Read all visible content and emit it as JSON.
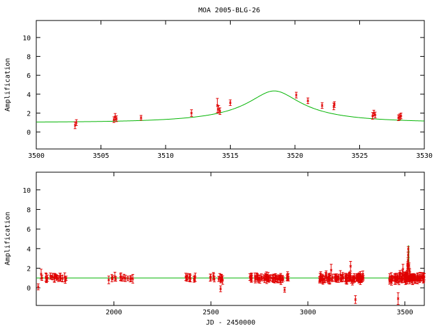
{
  "title": "MOA 2005-BLG-26",
  "colors": {
    "model": "#00b400",
    "data": "#e00000",
    "axis": "#000000",
    "background": "#ffffff"
  },
  "chart_data": [
    {
      "type": "scatter",
      "title": "MOA 2005-BLG-26",
      "xlabel": "",
      "ylabel": "Amplification",
      "xlim": [
        3500,
        3530
      ],
      "ylim": [
        -1.8,
        11.8
      ],
      "x_ticks": [
        3500,
        3505,
        3510,
        3515,
        3520,
        3525,
        3530
      ],
      "y_ticks": [
        0,
        2,
        4,
        6,
        8,
        10
      ],
      "grid": false,
      "series": [
        {
          "kind": "data",
          "points": [
            {
              "x": 3503.0,
              "y": 0.7,
              "err": 0.35
            },
            {
              "x": 3503.1,
              "y": 1.0,
              "err": 0.3
            },
            {
              "x": 3506.0,
              "y": 1.3,
              "err": 0.3
            },
            {
              "x": 3506.1,
              "y": 1.6,
              "err": 0.35
            },
            {
              "x": 3506.2,
              "y": 1.4,
              "err": 0.3
            },
            {
              "x": 3508.1,
              "y": 1.5,
              "err": 0.25
            },
            {
              "x": 3512.0,
              "y": 2.0,
              "err": 0.35
            },
            {
              "x": 3514.0,
              "y": 2.8,
              "err": 0.75
            },
            {
              "x": 3514.1,
              "y": 2.4,
              "err": 0.4
            },
            {
              "x": 3514.2,
              "y": 2.2,
              "err": 0.35
            },
            {
              "x": 3515.0,
              "y": 3.1,
              "err": 0.3
            },
            {
              "x": 3520.1,
              "y": 3.9,
              "err": 0.3
            },
            {
              "x": 3521.0,
              "y": 3.3,
              "err": 0.3
            },
            {
              "x": 3522.1,
              "y": 2.8,
              "err": 0.3
            },
            {
              "x": 3523.0,
              "y": 2.7,
              "err": 0.35
            },
            {
              "x": 3523.05,
              "y": 2.9,
              "err": 0.3
            },
            {
              "x": 3526.0,
              "y": 1.7,
              "err": 0.35
            },
            {
              "x": 3526.1,
              "y": 2.0,
              "err": 0.3
            },
            {
              "x": 3526.2,
              "y": 1.8,
              "err": 0.3
            },
            {
              "x": 3528.0,
              "y": 1.5,
              "err": 0.3
            },
            {
              "x": 3528.1,
              "y": 1.6,
              "err": 0.3
            },
            {
              "x": 3528.2,
              "y": 1.7,
              "err": 0.3
            }
          ]
        },
        {
          "kind": "model",
          "t0": 3518.4,
          "u0": 0.235,
          "tE": 8.5
        }
      ]
    },
    {
      "type": "scatter",
      "title": "",
      "xlabel": "JD - 2450000",
      "ylabel": "Amplification",
      "xlim": [
        1600,
        3600
      ],
      "ylim": [
        -1.8,
        11.8
      ],
      "x_ticks": [
        2000,
        2500,
        3000,
        3500
      ],
      "y_ticks": [
        0,
        2,
        4,
        6,
        8,
        10
      ],
      "grid": false,
      "series": [
        {
          "kind": "data",
          "clusters": [
            {
              "start": 1610,
              "end": 1780,
              "n": 22,
              "sd": 0.25
            },
            {
              "start": 1960,
              "end": 2100,
              "n": 14,
              "sd": 0.15
            },
            {
              "start": 2360,
              "end": 2420,
              "n": 10,
              "sd": 0.15
            },
            {
              "start": 2490,
              "end": 2570,
              "n": 12,
              "sd": 0.2
            },
            {
              "start": 2700,
              "end": 2900,
              "n": 60,
              "sd": 0.2
            },
            {
              "start": 3060,
              "end": 3290,
              "n": 95,
              "sd": 0.3
            },
            {
              "start": 3420,
              "end": 3610,
              "n": 90,
              "sd": 0.3
            }
          ],
          "outliers": [
            {
              "x": 1610,
              "y": 0.1,
              "err": 0.3
            },
            {
              "x": 1625,
              "y": 1.4,
              "err": 0.5
            },
            {
              "x": 2550,
              "y": -0.1,
              "err": 0.3
            },
            {
              "x": 2880,
              "y": -0.2,
              "err": 0.25
            },
            {
              "x": 3120,
              "y": 1.8,
              "err": 0.6
            },
            {
              "x": 3220,
              "y": 2.2,
              "err": 0.5
            },
            {
              "x": 3245,
              "y": -1.2,
              "err": 0.4
            },
            {
              "x": 3465,
              "y": -1.1,
              "err": 0.6
            },
            {
              "x": 3490,
              "y": 1.9,
              "err": 0.5
            }
          ]
        },
        {
          "kind": "model",
          "t0": 3518.4,
          "u0": 0.235,
          "tE": 8.5
        }
      ]
    }
  ]
}
